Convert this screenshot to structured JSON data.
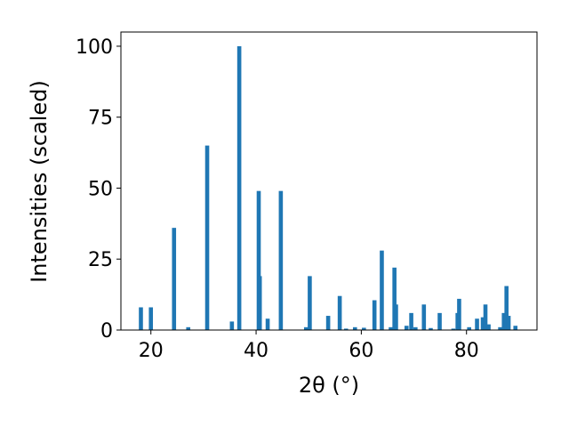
{
  "chart_data": {
    "type": "bar",
    "xlabel": "2θ (°)",
    "ylabel": "Intensities (scaled)",
    "x": [
      18.1,
      20.0,
      24.4,
      27.1,
      30.7,
      35.4,
      36.8,
      40.5,
      40.7,
      42.2,
      44.7,
      49.5,
      50.2,
      53.7,
      55.9,
      57.1,
      58.8,
      60.5,
      62.5,
      63.9,
      65.6,
      66.3,
      66.6,
      68.6,
      69.5,
      70.3,
      71.9,
      73.2,
      74.9,
      77.5,
      78.3,
      78.6,
      80.5,
      82.0,
      83.1,
      83.6,
      84.2,
      86.4,
      87.1,
      87.6,
      88.0,
      89.3
    ],
    "values": [
      8,
      8,
      36,
      1,
      65,
      3,
      100,
      49,
      19,
      4,
      49,
      1,
      19,
      5,
      12,
      0.5,
      1,
      0.8,
      10.5,
      28,
      1,
      22,
      9,
      1.5,
      6,
      1,
      9,
      0.7,
      6,
      0.5,
      6,
      11,
      1,
      4,
      4.5,
      9,
      2,
      1,
      6,
      15.5,
      5,
      1.5
    ],
    "color": "#1f77b4",
    "xlim": [
      14.3,
      93.4
    ],
    "ylim": [
      0,
      105
    ],
    "xticks": [
      20,
      40,
      60,
      80
    ],
    "yticks": [
      0,
      25,
      50,
      75,
      100
    ]
  }
}
